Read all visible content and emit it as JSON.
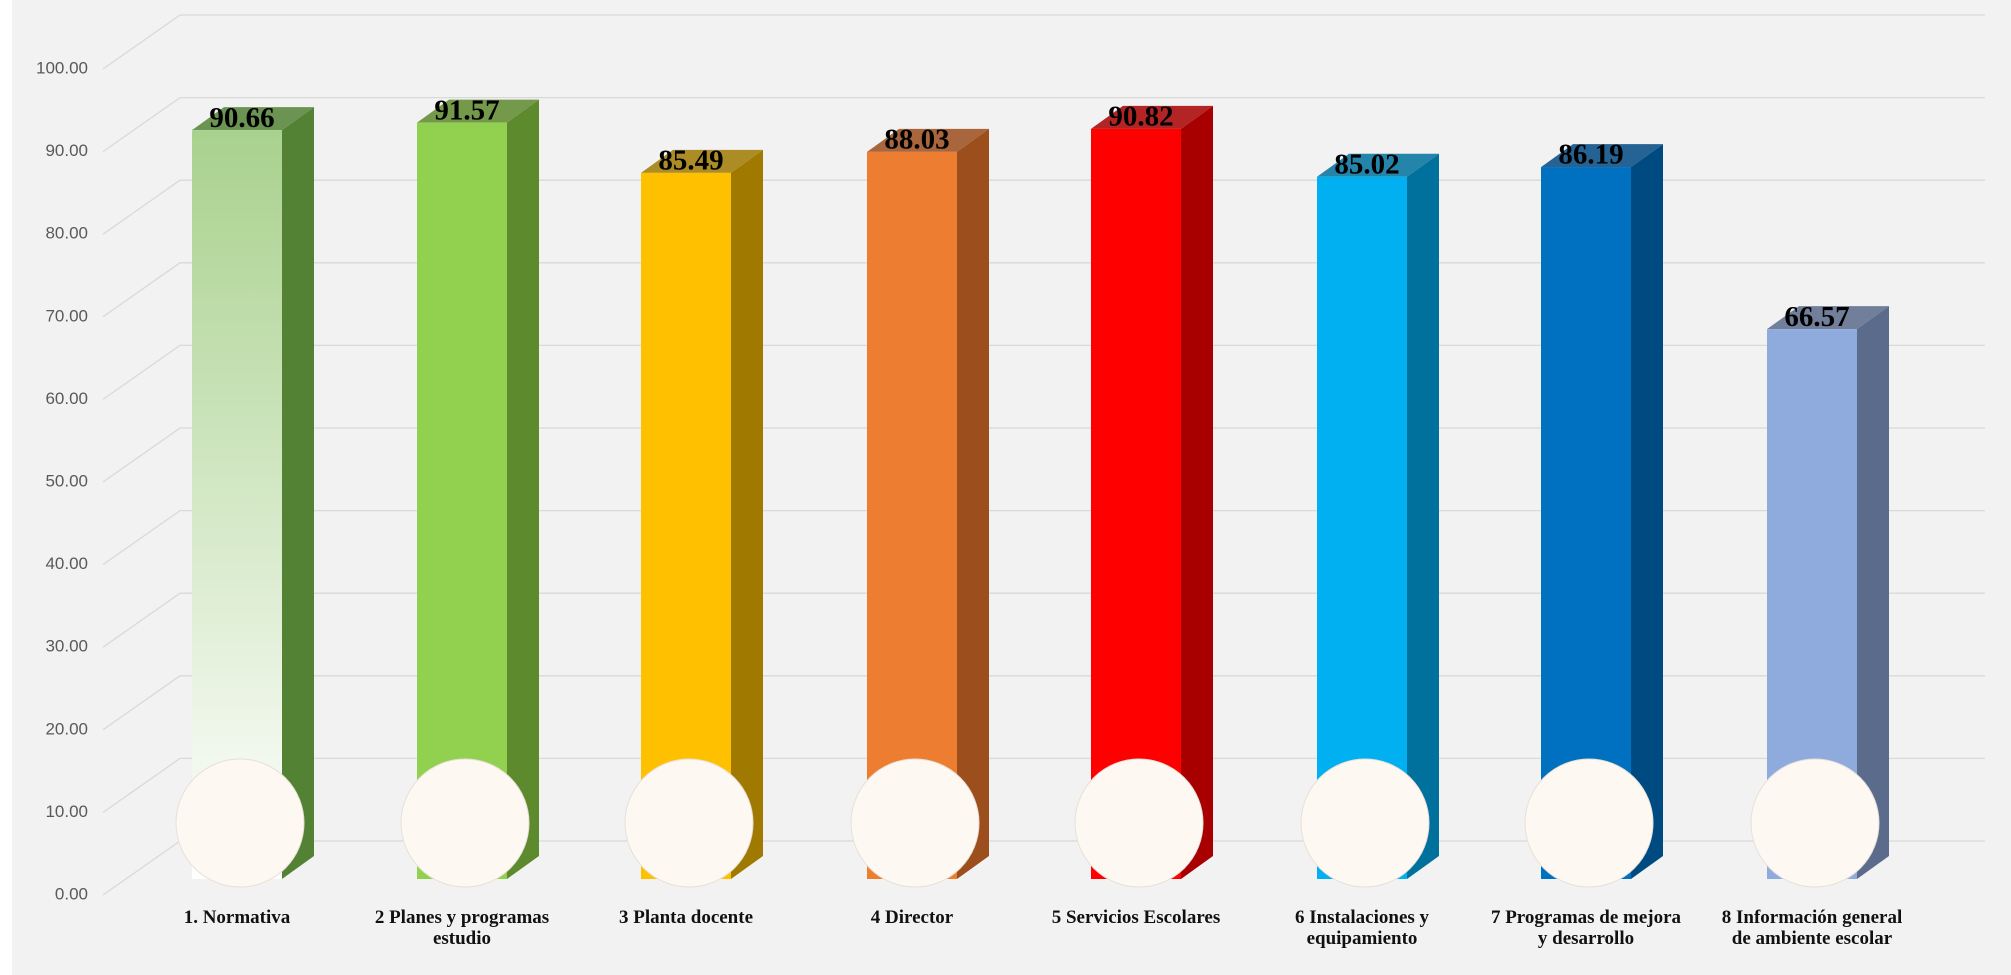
{
  "chart_data": {
    "type": "bar3d",
    "categories": [
      "1. Normativa",
      "2 Planes y programas estudio",
      "3 Planta docente",
      "4 Director",
      "5 Servicios Escolares",
      "6 Instalaciones y equipamiento",
      "7 Programas de mejora y desarrollo",
      "8 Información general de ambiente escolar"
    ],
    "values": [
      90.66,
      91.57,
      85.49,
      88.03,
      90.82,
      85.02,
      86.19,
      66.57
    ],
    "colors": [
      "#a9d18e",
      "#92d050",
      "#ffc000",
      "#ed7d31",
      "#ff0000",
      "#00b0f0",
      "#0070c0",
      "#8faadc"
    ],
    "side_colors": [
      "#548235",
      "#5e8a2e",
      "#a07a00",
      "#9c4e1c",
      "#a80000",
      "#00719c",
      "#004a82",
      "#5b6b8c"
    ],
    "ylim": [
      0,
      100
    ],
    "yticks": [
      {
        "value": 0,
        "label": "0.00"
      },
      {
        "value": 10,
        "label": "10.00"
      },
      {
        "value": 20,
        "label": "20.00"
      },
      {
        "value": 30,
        "label": "30.00"
      },
      {
        "value": 40,
        "label": "40.00"
      },
      {
        "value": 50,
        "label": "50.00"
      },
      {
        "value": 60,
        "label": "60.00"
      },
      {
        "value": 70,
        "label": "70.00"
      },
      {
        "value": 80,
        "label": "80.00"
      },
      {
        "value": 90,
        "label": "90.00"
      },
      {
        "value": 100,
        "label": "100.00"
      }
    ],
    "grid": true
  }
}
